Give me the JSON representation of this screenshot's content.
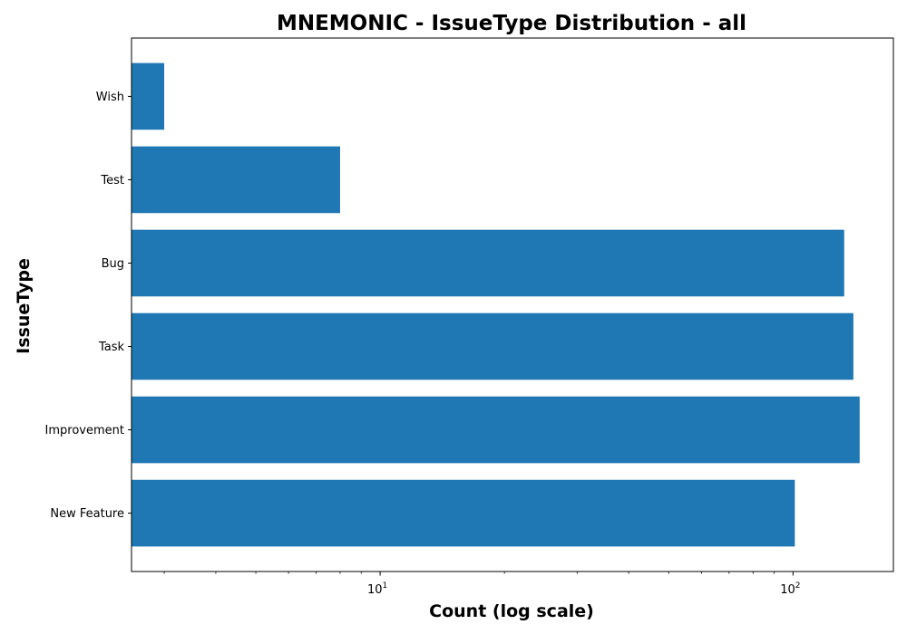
{
  "chart_data": {
    "type": "bar",
    "orientation": "horizontal",
    "title": "MNEMONIC - IssueType Distribution - all",
    "xlabel": "Count (log scale)",
    "ylabel": "IssueType",
    "x_scale": "log",
    "xlim": [
      2.5,
      175
    ],
    "x_major_ticks": [
      {
        "value": 10,
        "base": "10",
        "exp": "1"
      },
      {
        "value": 100,
        "base": "10",
        "exp": "2"
      }
    ],
    "categories": [
      "New Feature",
      "Improvement",
      "Task",
      "Bug",
      "Test",
      "Wish"
    ],
    "values": [
      101,
      145,
      140,
      133,
      8,
      3
    ],
    "bar_color": "#1f77b4",
    "grid": false,
    "legend": "none"
  }
}
